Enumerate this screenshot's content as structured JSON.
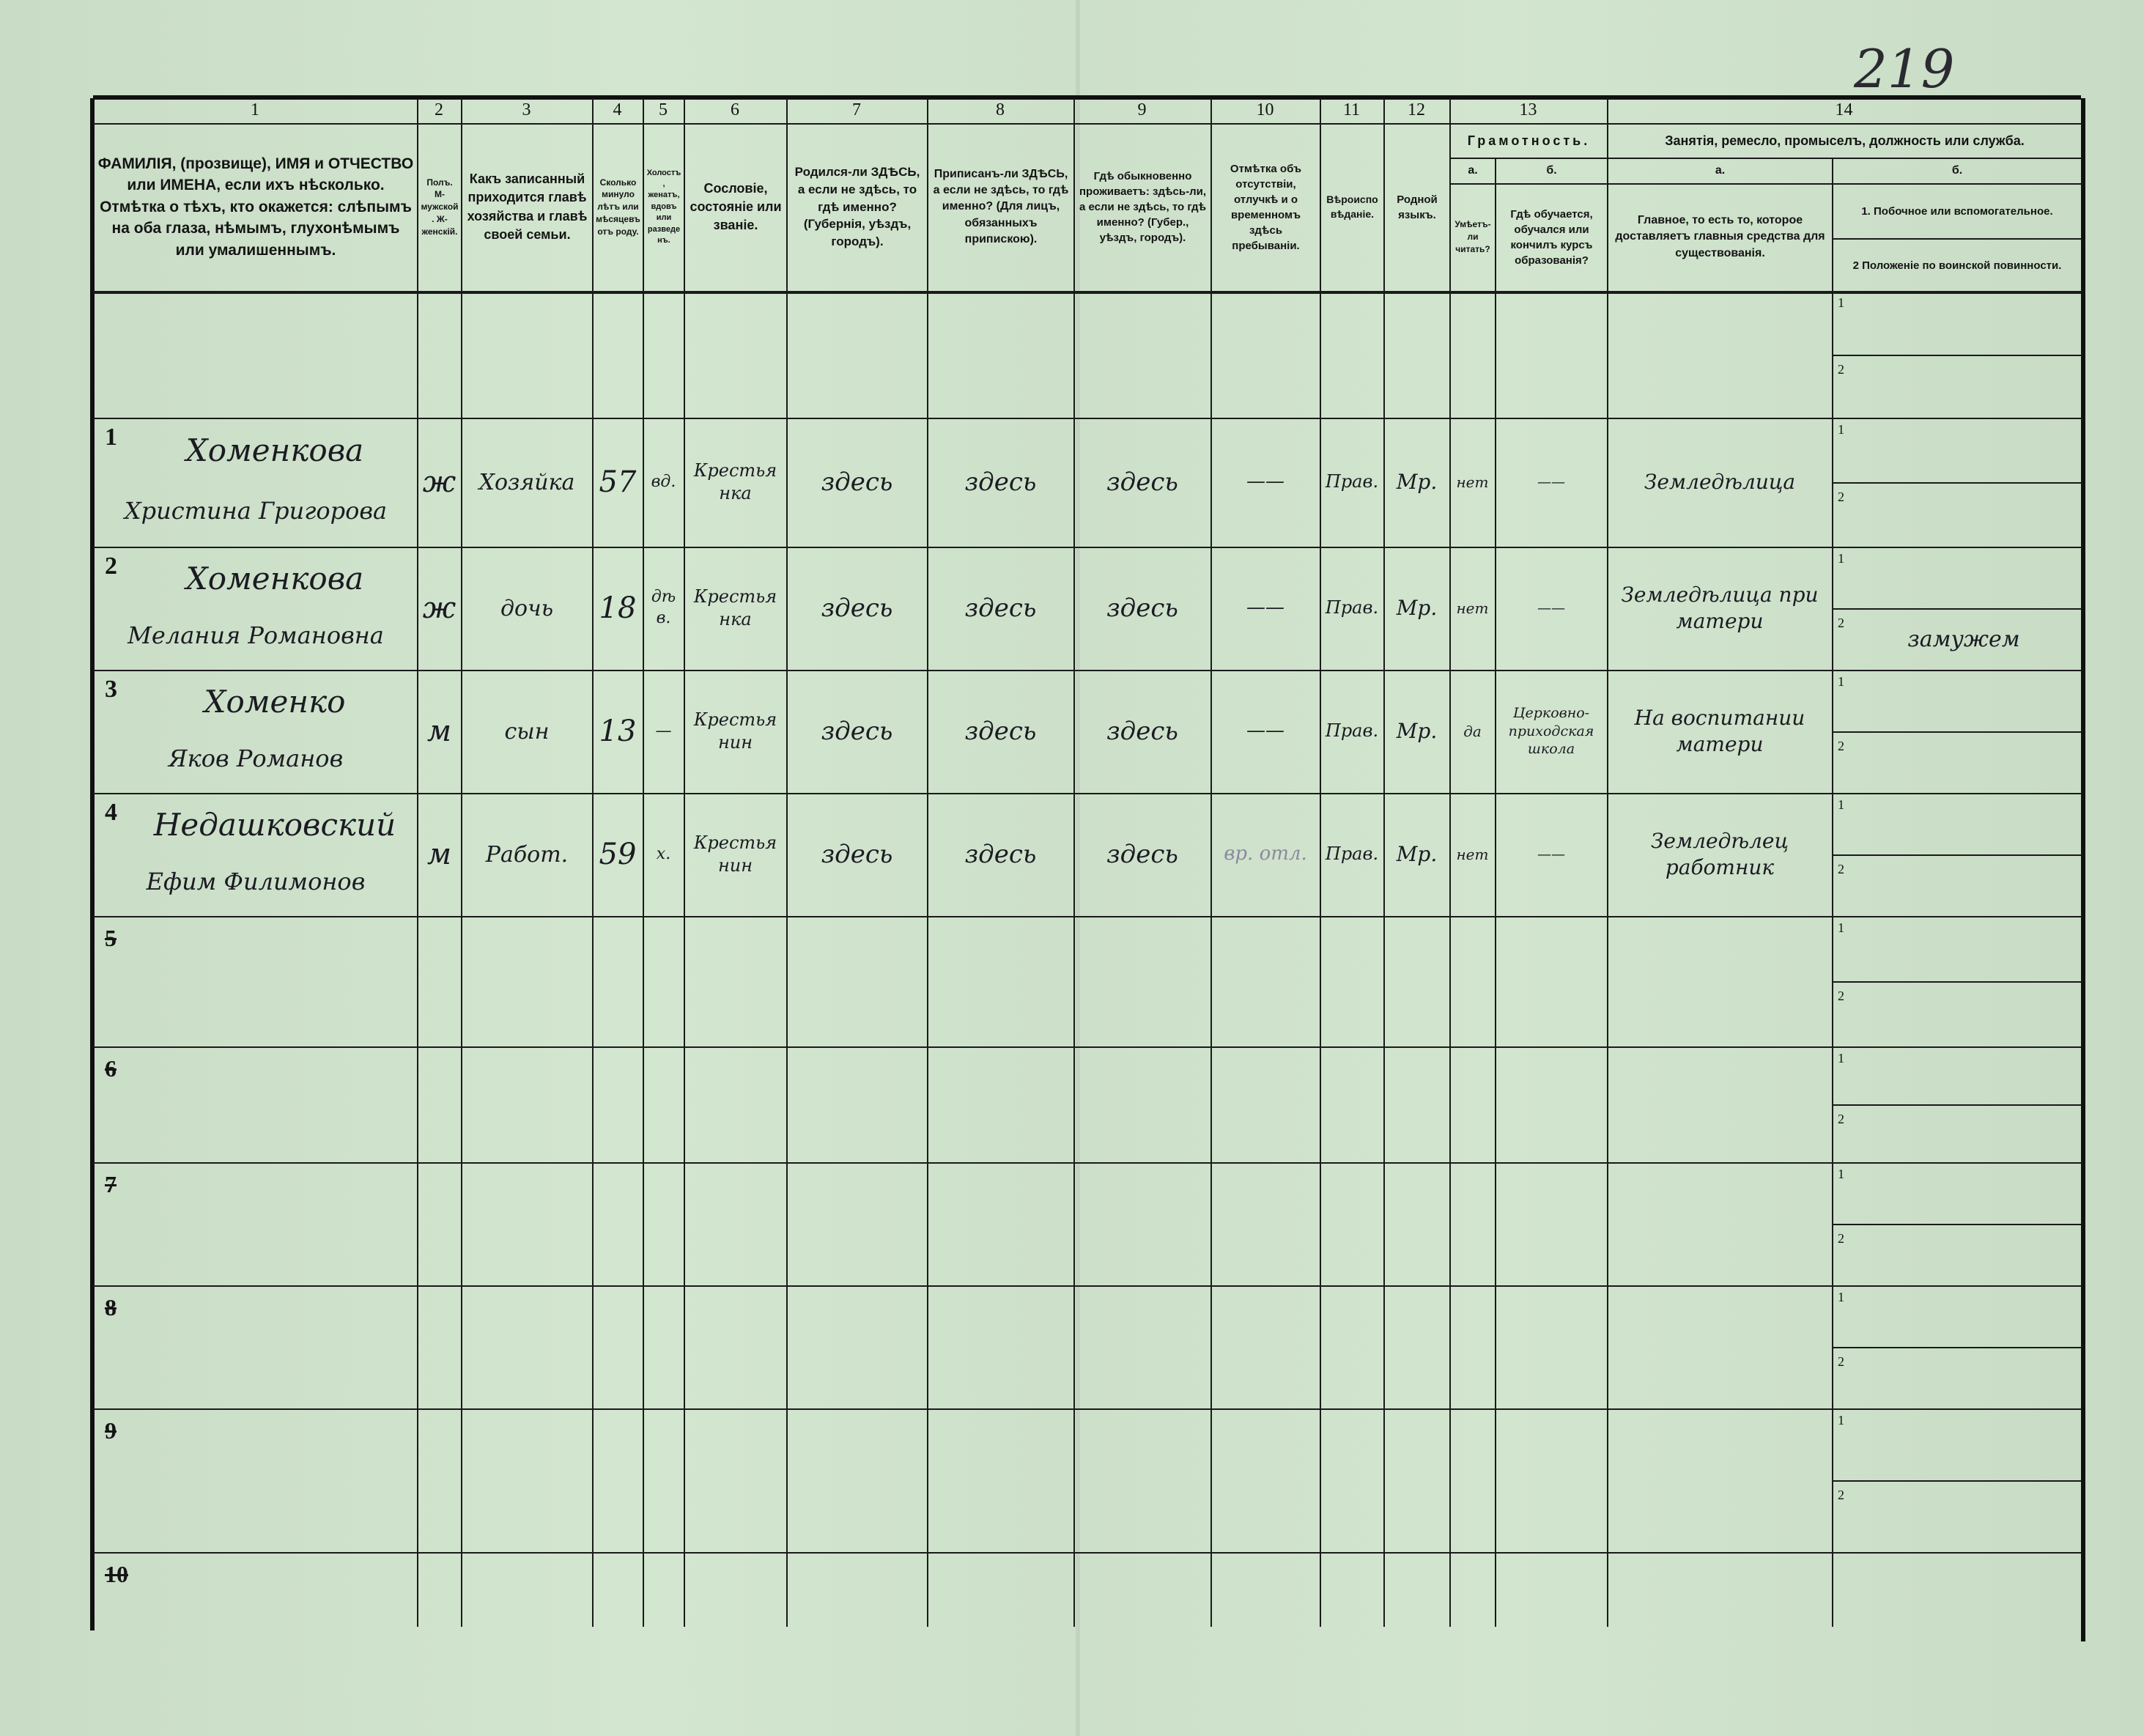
{
  "page_number": "219",
  "colors": {
    "paper": "#cfe2cc",
    "ink_print": "#141414",
    "ink_hand": "#1b1b22"
  },
  "header": {
    "col_numbers": [
      "1",
      "2",
      "3",
      "4",
      "5",
      "6",
      "7",
      "8",
      "9",
      "10",
      "11",
      "12",
      "13",
      "14"
    ],
    "col1": "ФАМИЛІЯ, (прозвище), ИМЯ и ОТЧЕСТВО или ИМЕНА, если ихъ нѣсколько. Отмѣтка о тѣхъ, кто окажется: слѣпымъ на оба глаза, нѣмымъ, глухонѣмымъ или умалишеннымъ.",
    "col2": "Полъ. М-мужской. Ж-женскій.",
    "col3": "Какъ записанный приходится главѣ хозяйства и главѣ своей семьи.",
    "col4": "Сколько минуло лѣтъ или мѣсяцевъ отъ роду.",
    "col5": "Холостъ, женатъ, вдовъ или разведенъ.",
    "col6": "Сословіе, состояніе или званіе.",
    "col7": "Родился-ли ЗДѢСЬ, а если не здѣсь, то гдѣ именно? (Губернія, уѣздъ, городъ).",
    "col8": "Приписанъ-ли ЗДѢСЬ, а если не здѣсь, то гдѣ именно? (Для лицъ, обязанныхъ припискою).",
    "col9": "Гдѣ обыкновенно проживаетъ: здѣсь-ли, а если не здѣсь, то гдѣ именно? (Губер., уѣздъ, городъ).",
    "col10": "Отмѣтка объ отсутствіи, отлучкѣ и о временномъ здѣсь пребываніи.",
    "col11": "Вѣроисповѣданіе.",
    "col12": "Родной языкъ.",
    "col13": "Грамотность.",
    "col13a_letter": "а.",
    "col13a": "Умѣетъ-ли читать?",
    "col13b_letter": "б.",
    "col13b": "Гдѣ обучается, обучался или кончилъ курсъ образованія?",
    "col14": "Занятія, ремесло, промыселъ, должность или служба.",
    "col14a_letter": "а.",
    "col14a": "Главное, то есть то, которое доставляетъ главныя средства для существованія.",
    "col14b_letter": "б.",
    "col14b_1": "1. Побочное или вспомогательное.",
    "col14b_2": "2 Положеніе по воинской повинности."
  },
  "rows": [
    {
      "n": "1",
      "surname": "Хоменкова",
      "given": "Христина Григорова",
      "sex": "ж",
      "relation": "Хозяйка",
      "age": "57",
      "marital": "вд.",
      "estate": "Крестьянка",
      "born": "здесь",
      "registered": "здесь",
      "resides": "здесь",
      "absence": "——",
      "religion": "Прав.",
      "language": "Мр.",
      "literate": "нет",
      "school": "——",
      "occupation": "Земледѣлица",
      "side1": "",
      "side2": ""
    },
    {
      "n": "2",
      "surname": "Хоменкова",
      "given": "Мелания Романовна",
      "sex": "ж",
      "relation": "дочь",
      "age": "18",
      "marital": "дѣв.",
      "estate": "Крестьянка",
      "born": "здесь",
      "registered": "здесь",
      "resides": "здесь",
      "absence": "——",
      "religion": "Прав.",
      "language": "Мр.",
      "literate": "нет",
      "school": "——",
      "occupation": "Земледѣлица при матери",
      "side1": "",
      "side2": "замужем"
    },
    {
      "n": "3",
      "surname": "Хоменко",
      "given": "Яков Романов",
      "sex": "м",
      "relation": "сын",
      "age": "13",
      "marital": "—",
      "estate": "Крестьянин",
      "born": "здесь",
      "registered": "здесь",
      "resides": "здесь",
      "absence": "——",
      "religion": "Прав.",
      "language": "Мр.",
      "literate": "да",
      "school": "Церковно-приходская школа",
      "occupation": "На воспитании матери",
      "side1": "",
      "side2": ""
    },
    {
      "n": "4",
      "surname": "Недашковский",
      "given": "Ефим Филимонов",
      "sex": "м",
      "relation": "Работ.",
      "age": "59",
      "marital": "х.",
      "estate": "Крестьянин",
      "born": "здесь",
      "registered": "здесь",
      "resides": "здесь",
      "absence": "вр. отл.",
      "religion": "Прав.",
      "language": "Мр.",
      "literate": "нет",
      "school": "——",
      "occupation": "Земледѣлец работник",
      "side1": "",
      "side2": ""
    }
  ],
  "empty_row_numbers": [
    "5",
    "6",
    "7",
    "8",
    "9",
    "10"
  ],
  "sub_labels": [
    "1",
    "2"
  ]
}
